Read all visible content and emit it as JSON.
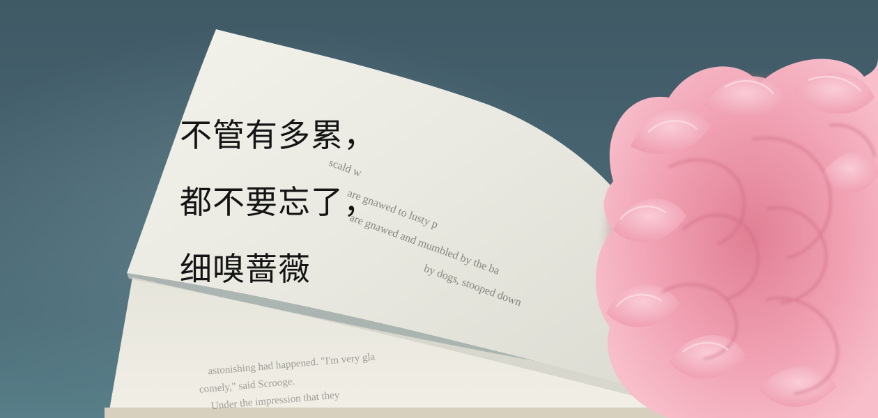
{
  "quote": {
    "lines": [
      "不管有多累，",
      "都不要忘了，",
      "细嗅蔷薇"
    ]
  },
  "book_text": {
    "upper_page": [
      "scald w",
      "are gnawed to lusty p",
      "are gnawed and mumbled by the ba",
      "by dogs, stooped down"
    ],
    "lower_page": [
      "Under the impression that they",
      "comely,\" said Scrooge.",
      "astonishing had happened. \"I'm very gla"
    ]
  },
  "colors": {
    "background": "#486571",
    "page": "#eeeee6",
    "carnation": "#f2a2b4",
    "text": "#141414"
  }
}
